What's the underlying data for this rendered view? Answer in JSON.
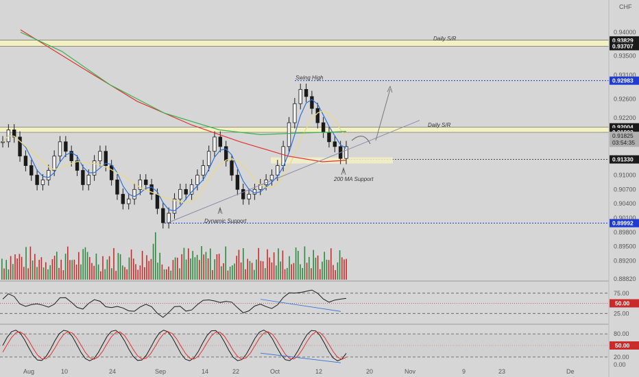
{
  "currency": "CHF",
  "price_axis": {
    "ticks": [
      "0.94000",
      "0.93500",
      "0.93100",
      "0.92600",
      "0.92200",
      "0.91900",
      "0.91000",
      "0.90700",
      "0.90400",
      "0.90100",
      "0.89800",
      "0.89500",
      "0.89200",
      "0.88820"
    ],
    "tick_values": [
      0.94,
      0.935,
      0.931,
      0.926,
      0.922,
      0.919,
      0.91,
      0.907,
      0.904,
      0.901,
      0.898,
      0.895,
      0.892,
      0.8882
    ]
  },
  "price_tags": [
    {
      "label": "0.93829",
      "value": 0.93829,
      "style": "dark"
    },
    {
      "label": "0.93707",
      "value": 0.93707,
      "style": "dark"
    },
    {
      "label": "0.92983",
      "value": 0.92983,
      "style": "blue"
    },
    {
      "label": "0.92004",
      "value": 0.92004,
      "style": "dark"
    },
    {
      "label": "0.91902",
      "value": 0.91902,
      "style": "dark"
    },
    {
      "label": "0.91825",
      "value": 0.91825,
      "style": "gray"
    },
    {
      "label": "03:54:35",
      "value": 0.9168,
      "style": "gray"
    },
    {
      "label": "0.91330",
      "value": 0.9133,
      "style": "dark"
    },
    {
      "label": "0.89992",
      "value": 0.89992,
      "style": "blue"
    }
  ],
  "annotations": {
    "daily_sr_top": "Daily S/R",
    "daily_sr_mid": "Daily S/R",
    "swing_high": "Swing High",
    "ma_support": "200 MA Support",
    "dynamic_support": "Dynamic Support"
  },
  "x_axis": {
    "labels": [
      "Aug",
      "10",
      "24",
      "Sep",
      "14",
      "22",
      "Oct",
      "12",
      "20",
      "Nov",
      "9",
      "23",
      "De"
    ]
  },
  "rsi_panel": {
    "ticks": [
      "75.00",
      "50.00",
      "25.00"
    ],
    "value_tag": "50.00"
  },
  "stoch_panel": {
    "ticks": [
      "80.00",
      "50.00",
      "20.00",
      "0.00"
    ],
    "value_tag": "50.00"
  },
  "colors": {
    "background": "#d6d6d6",
    "up_candle": "#1a1a1a",
    "down_candle": "#1a1a1a",
    "ma_fast": "#2f6fd6",
    "ma_mid": "#e8d98a",
    "ma_green": "#37b24d",
    "ma_red": "#e03131",
    "level_blue": "#1f3bd1",
    "volume_up": "#2b8a3e",
    "volume_down": "#c92a2a"
  },
  "chart_data": {
    "type": "line",
    "title": "",
    "xlabel": "",
    "ylabel": "",
    "ylim": [
      0.8882,
      0.9405
    ],
    "series": [
      {
        "name": "",
        "values": [
          0.917,
          0.9195,
          0.918,
          0.914,
          0.912,
          0.91,
          0.908,
          0.909,
          0.911,
          0.914,
          0.917,
          0.915,
          0.913,
          0.911,
          0.908,
          0.91,
          0.913,
          0.915,
          0.912,
          0.909,
          0.906,
          0.904,
          0.905,
          0.907,
          0.909,
          0.908,
          0.906,
          0.903,
          0.9,
          0.902,
          0.905,
          0.907,
          0.906,
          0.908,
          0.91,
          0.912,
          0.915,
          0.918,
          0.916,
          0.913,
          0.91,
          0.907,
          0.905,
          0.906,
          0.907,
          0.908,
          0.909,
          0.91,
          0.912,
          0.916,
          0.921,
          0.925,
          0.928,
          0.9265,
          0.924,
          0.921,
          0.919,
          0.917,
          0.916,
          0.9135,
          0.916
        ]
      }
    ],
    "levels": {
      "daily_sr_top": [
        0.93829,
        0.93707
      ],
      "swing_high": 0.92983,
      "daily_sr_mid": [
        0.92004,
        0.91902
      ],
      "support": 0.9133,
      "low": 0.89992
    }
  }
}
